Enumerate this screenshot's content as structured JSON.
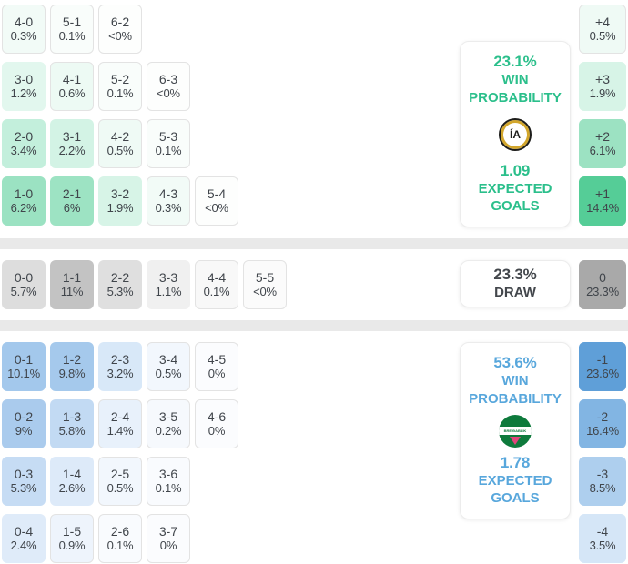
{
  "chart_data": {
    "type": "heatmap",
    "sections": [
      {
        "id": "home-win",
        "accent": "#2bbf8b",
        "panel": {
          "pct": "23.1%",
          "labels": [
            "WIN",
            "PROBABILITY"
          ],
          "value": "1.09",
          "value_labels": [
            "EXPECTED",
            "GOALS"
          ],
          "logo_text": "ÍA"
        },
        "rows": [
          [
            {
              "s": "4-0",
              "p": "0.3%",
              "c": "#f2fbf7"
            },
            {
              "s": "5-1",
              "p": "0.1%",
              "c": "#f9fdfb"
            },
            {
              "s": "6-2",
              "p": "<0%",
              "c": "#fdfefd"
            }
          ],
          [
            {
              "s": "3-0",
              "p": "1.2%",
              "c": "#e2f7ee"
            },
            {
              "s": "4-1",
              "p": "0.6%",
              "c": "#edfaf4"
            },
            {
              "s": "5-2",
              "p": "0.1%",
              "c": "#f9fdfb"
            },
            {
              "s": "6-3",
              "p": "<0%",
              "c": "#fdfefd"
            }
          ],
          [
            {
              "s": "2-0",
              "p": "3.4%",
              "c": "#c3efdc"
            },
            {
              "s": "3-1",
              "p": "2.2%",
              "c": "#d3f3e5"
            },
            {
              "s": "4-2",
              "p": "0.5%",
              "c": "#effaf5"
            },
            {
              "s": "5-3",
              "p": "0.1%",
              "c": "#f9fdfb"
            }
          ],
          [
            {
              "s": "1-0",
              "p": "6.2%",
              "c": "#9be2c2"
            },
            {
              "s": "2-1",
              "p": "6%",
              "c": "#9de3c3"
            },
            {
              "s": "3-2",
              "p": "1.9%",
              "c": "#d7f4e7"
            },
            {
              "s": "4-3",
              "p": "0.3%",
              "c": "#f2fbf7"
            },
            {
              "s": "5-4",
              "p": "<0%",
              "c": "#fdfefd"
            }
          ]
        ],
        "diff": [
          {
            "s": "+4",
            "p": "0.5%",
            "c": "#effaf5"
          },
          {
            "s": "+3",
            "p": "1.9%",
            "c": "#d7f4e7"
          },
          {
            "s": "+2",
            "p": "6.1%",
            "c": "#9ce2c2"
          },
          {
            "s": "+1",
            "p": "14.4%",
            "c": "#55cd97"
          }
        ]
      },
      {
        "id": "draw",
        "accent": "#43474c",
        "panel": {
          "pct": "23.3%",
          "label": "DRAW"
        },
        "rows": [
          [
            {
              "s": "0-0",
              "p": "5.7%",
              "c": "#dddddd"
            },
            {
              "s": "1-1",
              "p": "11%",
              "c": "#c3c3c3"
            },
            {
              "s": "2-2",
              "p": "5.3%",
              "c": "#dfdfdf"
            },
            {
              "s": "3-3",
              "p": "1.1%",
              "c": "#f0f0f0"
            },
            {
              "s": "4-4",
              "p": "0.1%",
              "c": "#f8f8f8"
            },
            {
              "s": "5-5",
              "p": "<0%",
              "c": "#fbfbfb"
            }
          ]
        ],
        "diff": [
          {
            "s": "0",
            "p": "23.3%",
            "c": "#a9a9a9"
          }
        ]
      },
      {
        "id": "away-win",
        "accent": "#58a7dc",
        "panel": {
          "pct": "53.6%",
          "labels": [
            "WIN",
            "PROBABILITY"
          ],
          "value": "1.78",
          "value_labels": [
            "EXPECTED",
            "GOALS"
          ],
          "logo_text": "BREIÐABLIK"
        },
        "rows": [
          [
            {
              "s": "0-1",
              "p": "10.1%",
              "c": "#a3c8ec"
            },
            {
              "s": "1-2",
              "p": "9.8%",
              "c": "#a5c9ec"
            },
            {
              "s": "2-3",
              "p": "3.2%",
              "c": "#d8e8f8"
            },
            {
              "s": "3-4",
              "p": "0.5%",
              "c": "#f2f7fd"
            },
            {
              "s": "4-5",
              "p": "0%",
              "c": "#fbfcfe"
            }
          ],
          [
            {
              "s": "0-2",
              "p": "9%",
              "c": "#aacbed"
            },
            {
              "s": "1-3",
              "p": "5.8%",
              "c": "#c2daf3"
            },
            {
              "s": "2-4",
              "p": "1.4%",
              "c": "#e8f1fb"
            },
            {
              "s": "3-5",
              "p": "0.2%",
              "c": "#f6f9fd"
            },
            {
              "s": "4-6",
              "p": "0%",
              "c": "#fbfcfe"
            }
          ],
          [
            {
              "s": "0-3",
              "p": "5.3%",
              "c": "#c6dcf4"
            },
            {
              "s": "1-4",
              "p": "2.6%",
              "c": "#ddeaf9"
            },
            {
              "s": "2-5",
              "p": "0.5%",
              "c": "#f2f7fd"
            },
            {
              "s": "3-6",
              "p": "0.1%",
              "c": "#f9fbfe"
            }
          ],
          [
            {
              "s": "0-4",
              "p": "2.4%",
              "c": "#dfebf9"
            },
            {
              "s": "1-5",
              "p": "0.9%",
              "c": "#eef4fc"
            },
            {
              "s": "2-6",
              "p": "0.1%",
              "c": "#f9fbfe"
            },
            {
              "s": "3-7",
              "p": "0%",
              "c": "#fbfcfe"
            }
          ]
        ],
        "diff": [
          {
            "s": "-1",
            "p": "23.6%",
            "c": "#5f9fd8"
          },
          {
            "s": "-2",
            "p": "16.4%",
            "c": "#82b5e3"
          },
          {
            "s": "-3",
            "p": "8.5%",
            "c": "#aecfee"
          },
          {
            "s": "-4",
            "p": "3.5%",
            "c": "#d5e6f7"
          }
        ]
      }
    ]
  }
}
